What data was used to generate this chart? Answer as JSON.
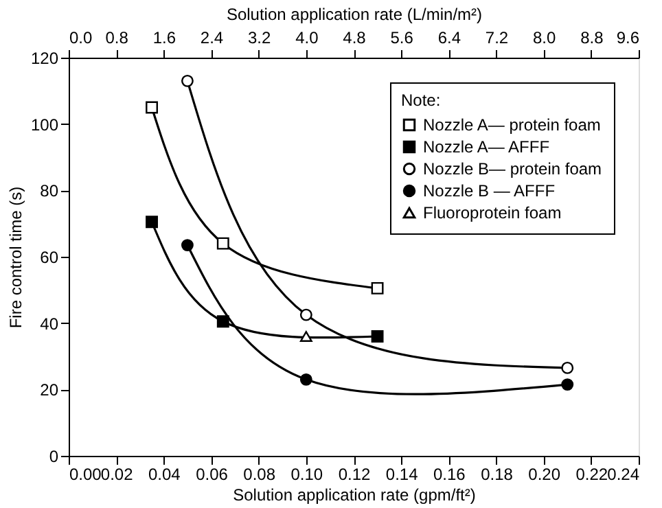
{
  "chart_data": {
    "type": "line",
    "xlabel": "Solution application rate (gpm/ft²)",
    "ylabel": "Fire control time (s)",
    "x2label": "Solution application rate (L/min/m²)",
    "legend_title": "Note:",
    "legend": "top right",
    "grid": false,
    "xlim": [
      0,
      0.24
    ],
    "xticks": [
      {
        "value": 0,
        "label": "0.00"
      },
      {
        "value": 0.02,
        "label": "0.02"
      },
      {
        "value": 0.04,
        "label": "0.04"
      },
      {
        "value": 0.06,
        "label": "0.06"
      },
      {
        "value": 0.08,
        "label": "0.08"
      },
      {
        "value": 0.1,
        "label": "0.10"
      },
      {
        "value": 0.12,
        "label": "0.12"
      },
      {
        "value": 0.14,
        "label": "0.14"
      },
      {
        "value": 0.16,
        "label": "0.16"
      },
      {
        "value": 0.18,
        "label": "0.18"
      },
      {
        "value": 0.2,
        "label": "0.20"
      },
      {
        "value": 0.22,
        "label": "0.22"
      },
      {
        "value": 0.24,
        "label": "0.24"
      }
    ],
    "x2lim": [
      0,
      9.6
    ],
    "x2ticks": [
      {
        "value": 0,
        "label": "0.0"
      },
      0.8,
      1.6,
      2.4,
      3.2,
      {
        "value": 4,
        "label": "4.0"
      },
      4.8,
      5.6,
      6.4,
      7.2,
      {
        "value": 8,
        "label": "8.0"
      },
      8.8,
      9.6
    ],
    "ylim": [
      0,
      120
    ],
    "yticks": [
      0,
      20,
      40,
      60,
      80,
      100,
      120
    ],
    "series": [
      {
        "name": "Nozzle A— protein foam",
        "marker": "square",
        "colors": [
          "#ffffff",
          "#ffffff",
          "#ffffff"
        ],
        "color": "#000000",
        "x": [
          0.035,
          0.065,
          0.13
        ],
        "values": [
          105,
          64,
          50.5
        ]
      },
      {
        "name": "Nozzle A— AFFF",
        "marker": "square",
        "color": "#000000",
        "x": [
          0.035,
          0.065,
          0.13
        ],
        "values": [
          70.5,
          40.5,
          36
        ]
      },
      {
        "name": "Nozzle B— protein foam",
        "marker": "circle",
        "colors": [
          "#ffffff",
          "#ffffff",
          "#ffffff"
        ],
        "color": "#000000",
        "x": [
          0.05,
          0.1,
          0.21
        ],
        "values": [
          113,
          42.5,
          26.5
        ]
      },
      {
        "name": "Nozzle B — AFFF",
        "marker": "circle",
        "color": "#000000",
        "x": [
          0.05,
          0.1,
          0.21
        ],
        "values": [
          63.5,
          23,
          21.5
        ]
      },
      {
        "name": "Fluoroprotein foam",
        "type": "scatter",
        "marker": "triangle",
        "colors": [
          "#ffffff"
        ],
        "color": "#000000",
        "x": [
          0.1
        ],
        "values": [
          36
        ]
      }
    ]
  }
}
